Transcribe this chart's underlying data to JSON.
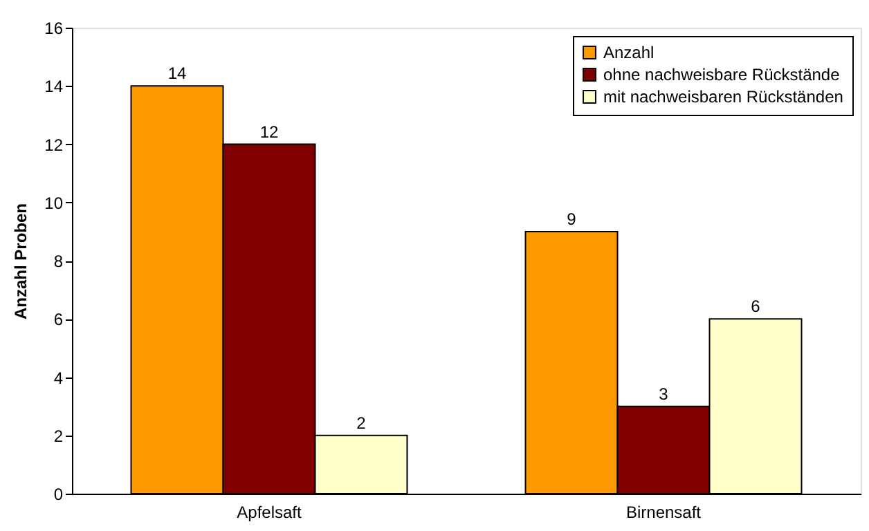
{
  "chart_data": {
    "type": "bar",
    "ylabel": "Anzahl Proben",
    "categories": [
      "Apfelsaft",
      "Birnensaft"
    ],
    "series": [
      {
        "name": "Anzahl",
        "color": "#ff9900",
        "values": [
          14,
          9
        ]
      },
      {
        "name": "ohne nachweisbare Rückstände",
        "color": "#800000",
        "values": [
          12,
          3
        ]
      },
      {
        "name": "mit nachweisbaren Rückständen",
        "color": "#ffffcc",
        "values": [
          2,
          6
        ]
      }
    ],
    "ylim": [
      0,
      16
    ],
    "yticks": [
      0,
      2,
      4,
      6,
      8,
      10,
      12,
      14,
      16
    ],
    "grid": false,
    "legend": "top right",
    "data_labels": true
  }
}
